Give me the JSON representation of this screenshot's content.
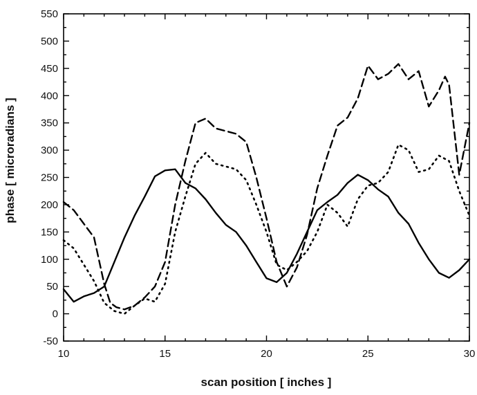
{
  "chart_data": {
    "type": "line",
    "title": "",
    "xlabel": "scan position  [ inches ]",
    "ylabel": "phase  [ microradians ]",
    "xlim": [
      10,
      30
    ],
    "ylim": [
      -50,
      550
    ],
    "x_ticks": [
      10,
      15,
      20,
      25,
      30
    ],
    "y_ticks": [
      -50,
      0,
      50,
      100,
      150,
      200,
      250,
      300,
      350,
      400,
      450,
      500,
      550
    ],
    "grid": false,
    "legend": "none",
    "series": [
      {
        "style": "solid",
        "color": "#000000",
        "points": [
          [
            10,
            45
          ],
          [
            10.5,
            22
          ],
          [
            11,
            32
          ],
          [
            11.5,
            38
          ],
          [
            12,
            50
          ],
          [
            12.5,
            95
          ],
          [
            13,
            140
          ],
          [
            13.5,
            180
          ],
          [
            14,
            215
          ],
          [
            14.5,
            252
          ],
          [
            15,
            263
          ],
          [
            15.5,
            265
          ],
          [
            15.8,
            250
          ],
          [
            16,
            240
          ],
          [
            16.5,
            230
          ],
          [
            17,
            210
          ],
          [
            17.5,
            185
          ],
          [
            18,
            163
          ],
          [
            18.5,
            150
          ],
          [
            19,
            125
          ],
          [
            19.5,
            95
          ],
          [
            20,
            65
          ],
          [
            20.5,
            58
          ],
          [
            21,
            75
          ],
          [
            21.5,
            110
          ],
          [
            22,
            150
          ],
          [
            22.5,
            190
          ],
          [
            23,
            205
          ],
          [
            23.5,
            218
          ],
          [
            24,
            240
          ],
          [
            24.5,
            255
          ],
          [
            25,
            245
          ],
          [
            25.5,
            228
          ],
          [
            26,
            215
          ],
          [
            26.5,
            185
          ],
          [
            27,
            165
          ],
          [
            27.5,
            130
          ],
          [
            28,
            100
          ],
          [
            28.5,
            75
          ],
          [
            29,
            66
          ],
          [
            29.5,
            80
          ],
          [
            30,
            100
          ]
        ]
      },
      {
        "style": "dashed",
        "color": "#000000",
        "points": [
          [
            10,
            205
          ],
          [
            10.5,
            190
          ],
          [
            11,
            165
          ],
          [
            11.5,
            140
          ],
          [
            12,
            55
          ],
          [
            12.3,
            20
          ],
          [
            12.6,
            12
          ],
          [
            13,
            8
          ],
          [
            13.5,
            15
          ],
          [
            14,
            30
          ],
          [
            14.5,
            50
          ],
          [
            15,
            95
          ],
          [
            15.5,
            200
          ],
          [
            16,
            280
          ],
          [
            16.5,
            350
          ],
          [
            17,
            358
          ],
          [
            17.5,
            340
          ],
          [
            18,
            335
          ],
          [
            18.5,
            330
          ],
          [
            19,
            315
          ],
          [
            19.5,
            250
          ],
          [
            20,
            175
          ],
          [
            20.5,
            95
          ],
          [
            21,
            50
          ],
          [
            21.5,
            85
          ],
          [
            22,
            145
          ],
          [
            22.5,
            230
          ],
          [
            23,
            290
          ],
          [
            23.5,
            345
          ],
          [
            24,
            360
          ],
          [
            24.5,
            395
          ],
          [
            25,
            455
          ],
          [
            25.5,
            430
          ],
          [
            26,
            440
          ],
          [
            26.5,
            458
          ],
          [
            27,
            430
          ],
          [
            27.5,
            445
          ],
          [
            28,
            380
          ],
          [
            28.5,
            410
          ],
          [
            28.8,
            435
          ],
          [
            29,
            420
          ],
          [
            29.5,
            255
          ],
          [
            30,
            350
          ]
        ]
      },
      {
        "style": "dotted",
        "color": "#000000",
        "points": [
          [
            10,
            135
          ],
          [
            10.5,
            120
          ],
          [
            11,
            90
          ],
          [
            11.5,
            60
          ],
          [
            12,
            20
          ],
          [
            12.5,
            5
          ],
          [
            13,
            0
          ],
          [
            13.5,
            15
          ],
          [
            14,
            28
          ],
          [
            14.5,
            22
          ],
          [
            15,
            55
          ],
          [
            15.5,
            150
          ],
          [
            16,
            215
          ],
          [
            16.5,
            275
          ],
          [
            17,
            295
          ],
          [
            17.5,
            275
          ],
          [
            18,
            270
          ],
          [
            18.5,
            265
          ],
          [
            19,
            245
          ],
          [
            19.5,
            200
          ],
          [
            20,
            150
          ],
          [
            20.5,
            90
          ],
          [
            21,
            80
          ],
          [
            21.5,
            95
          ],
          [
            22,
            115
          ],
          [
            22.5,
            150
          ],
          [
            23,
            200
          ],
          [
            23.5,
            185
          ],
          [
            24,
            160
          ],
          [
            24.5,
            210
          ],
          [
            25,
            235
          ],
          [
            25.5,
            240
          ],
          [
            26,
            260
          ],
          [
            26.5,
            310
          ],
          [
            27,
            300
          ],
          [
            27.5,
            260
          ],
          [
            28,
            265
          ],
          [
            28.5,
            290
          ],
          [
            29,
            280
          ],
          [
            29.5,
            225
          ],
          [
            30,
            180
          ]
        ]
      }
    ]
  }
}
